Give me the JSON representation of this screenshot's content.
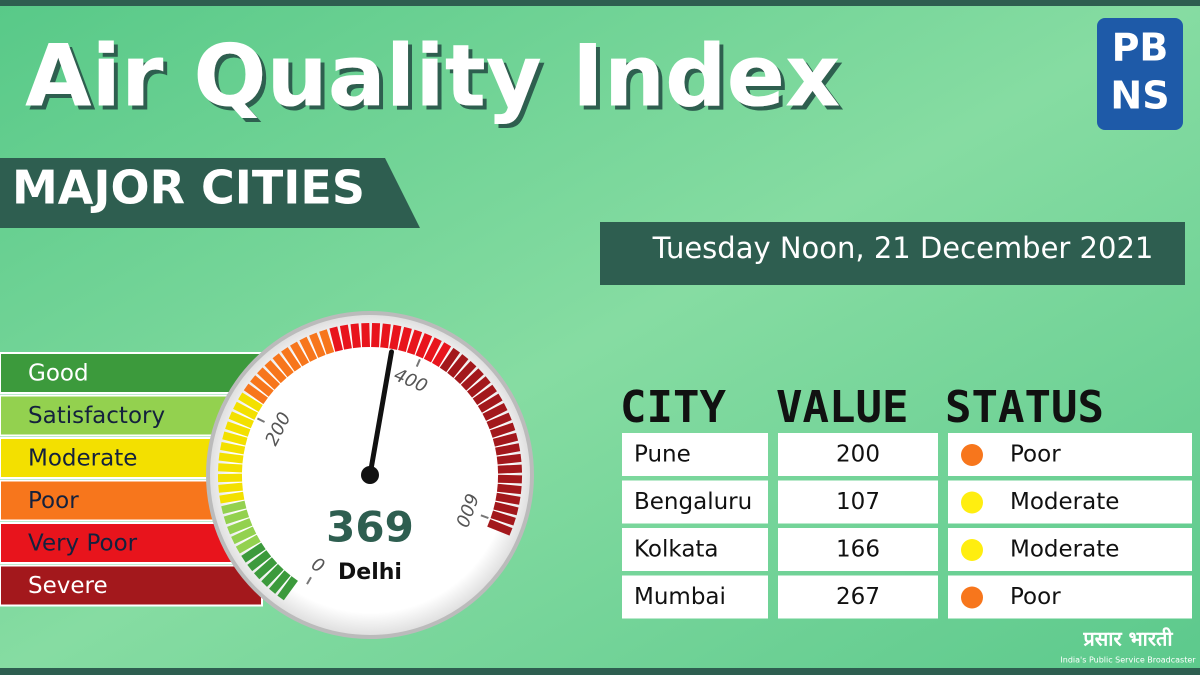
{
  "header": {
    "title": "Air Quality Index",
    "subtitle": "MAJOR CITIES",
    "date": "Tuesday Noon, 21 December 2021",
    "logo": [
      "PB",
      "NS"
    ]
  },
  "legend": [
    {
      "label": "Good",
      "color": "#3c9a3c"
    },
    {
      "label": "Satisfactory",
      "color": "#93d14f"
    },
    {
      "label": "Moderate",
      "color": "#f3e000"
    },
    {
      "label": "Poor",
      "color": "#f7761c"
    },
    {
      "label": "Very Poor",
      "color": "#e8141c"
    },
    {
      "label": "Severe",
      "color": "#a3181c"
    }
  ],
  "gauge": {
    "value": 369,
    "label": "369",
    "city": "Delhi",
    "range": [
      0,
      600
    ],
    "ticks": [
      0,
      200,
      400,
      600
    ]
  },
  "table": {
    "columns": [
      "CITY",
      "VALUE",
      "STATUS"
    ],
    "rows": [
      {
        "city": "Pune",
        "value": "200",
        "status": "Poor",
        "color": "#f7761c"
      },
      {
        "city": "Bengaluru",
        "value": "107",
        "status": "Moderate",
        "color": "#ffee10"
      },
      {
        "city": "Kolkata",
        "value": "166",
        "status": "Moderate",
        "color": "#ffee10"
      },
      {
        "city": "Mumbai",
        "value": "267",
        "status": "Poor",
        "color": "#f7761c"
      }
    ]
  },
  "footer": {
    "brand": "प्रसार भारती",
    "tagline": "India's Public Service Broadcaster"
  }
}
